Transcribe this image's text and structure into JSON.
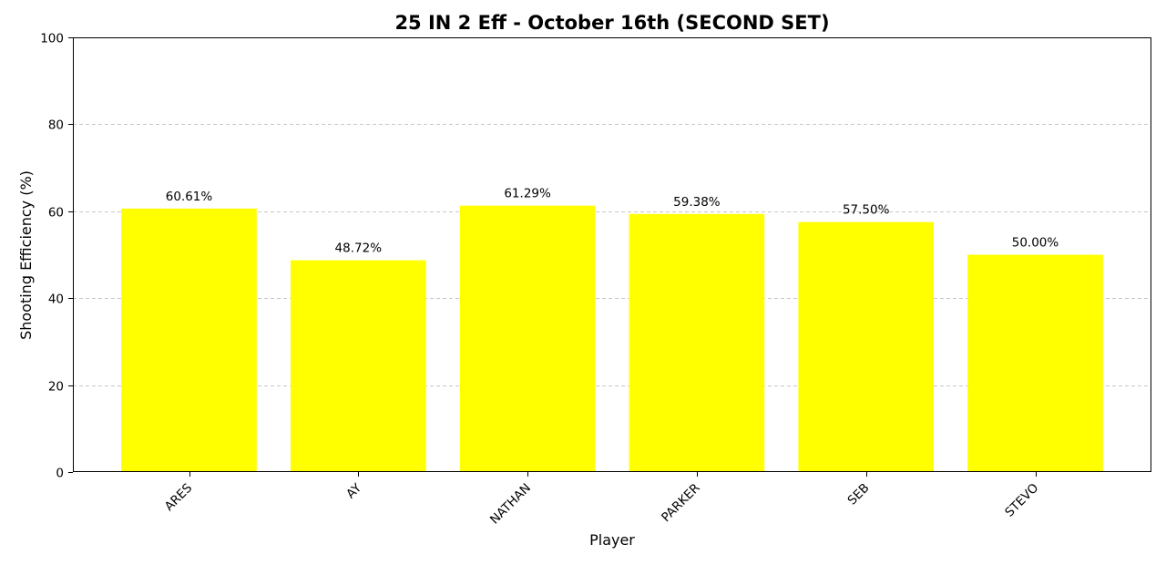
{
  "chart_data": {
    "type": "bar",
    "title": "25 IN 2 Eff - October 16th (SECOND SET)",
    "xlabel": "Player",
    "ylabel": "Shooting Efficiency (%)",
    "categories": [
      "ARES",
      "AY",
      "NATHAN",
      "PARKER",
      "SEB",
      "STEVO"
    ],
    "values": [
      60.61,
      48.72,
      61.29,
      59.38,
      57.5,
      50.0
    ],
    "value_labels": [
      "60.61%",
      "48.72%",
      "61.29%",
      "59.38%",
      "57.50%",
      "50.00%"
    ],
    "ylim": [
      0,
      100
    ],
    "yticks": [
      0,
      20,
      40,
      60,
      80,
      100
    ],
    "grid": "y-dashed",
    "bar_color": "#ffff00"
  }
}
